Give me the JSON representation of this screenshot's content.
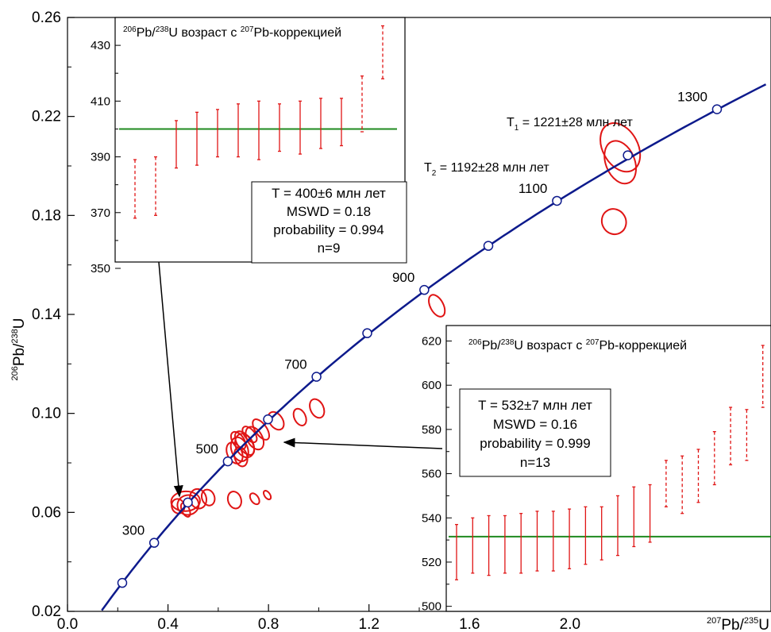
{
  "chart_data": {
    "type": "scatter",
    "main": {
      "xlabel_parts": [
        "207",
        "Pb/",
        "235",
        "U"
      ],
      "ylabel_parts": [
        "206",
        "Pb/",
        "238",
        "U"
      ],
      "xlim": [
        0.0,
        2.8
      ],
      "ylim": [
        0.02,
        0.26
      ],
      "x_ticks": [
        0.0,
        0.4,
        0.8,
        1.2,
        1.6,
        2.0
      ],
      "x_tick_labels": [
        "0.0",
        "0.4",
        "0.8",
        "1.2",
        "1.6",
        "2.0"
      ],
      "y_ticks": [
        0.02,
        0.06,
        0.1,
        0.14,
        0.18,
        0.22,
        0.26
      ],
      "y_tick_labels": [
        "0.02",
        "0.06",
        "0.10",
        "0.14",
        "0.18",
        "0.22",
        "0.26"
      ],
      "concordia_color": "#0d1a8c",
      "ellipse_color": "#e01515",
      "concordia_points": [
        {
          "age": 200,
          "x": 0.218,
          "y": 0.0315,
          "label": ""
        },
        {
          "age": 300,
          "x": 0.345,
          "y": 0.0477,
          "label": "300"
        },
        {
          "age": 400,
          "x": 0.479,
          "y": 0.064,
          "label": ""
        },
        {
          "age": 500,
          "x": 0.638,
          "y": 0.0806,
          "label": "500"
        },
        {
          "age": 600,
          "x": 0.798,
          "y": 0.0976,
          "label": ""
        },
        {
          "age": 700,
          "x": 0.991,
          "y": 0.1148,
          "label": "700"
        },
        {
          "age": 800,
          "x": 1.193,
          "y": 0.1324,
          "label": ""
        },
        {
          "age": 900,
          "x": 1.42,
          "y": 0.1499,
          "label": "900"
        },
        {
          "age": 1000,
          "x": 1.675,
          "y": 0.1677,
          "label": ""
        },
        {
          "age": 1100,
          "x": 1.948,
          "y": 0.1859,
          "label": "1100"
        },
        {
          "age": 1200,
          "x": 2.23,
          "y": 0.2043,
          "label": ""
        },
        {
          "age": 1300,
          "x": 2.585,
          "y": 0.2229,
          "label": "1300"
        }
      ],
      "annotations": [
        {
          "sub": "1",
          "text": " = 1221±28 млн лет"
        },
        {
          "sub": "2",
          "text": " = 1192±28 млн лет"
        }
      ],
      "annotation_letter": "T",
      "ellipses": [
        {
          "cx": 2.2,
          "cy": 0.2075,
          "rx": 0.14,
          "ry": 0.0105,
          "angle": -29
        },
        {
          "cx": 2.2,
          "cy": 0.2015,
          "rx": 0.115,
          "ry": 0.009,
          "angle": -22
        },
        {
          "cx": 2.175,
          "cy": 0.1775,
          "rx": 0.095,
          "ry": 0.0052,
          "angle": -30
        },
        {
          "cx": 1.47,
          "cy": 0.1435,
          "rx": 0.052,
          "ry": 0.0048,
          "angle": -28
        },
        {
          "cx": 0.993,
          "cy": 0.102,
          "rx": 0.052,
          "ry": 0.004,
          "angle": -25
        },
        {
          "cx": 0.925,
          "cy": 0.0985,
          "rx": 0.045,
          "ry": 0.0036,
          "angle": -25
        },
        {
          "cx": 0.83,
          "cy": 0.097,
          "rx": 0.052,
          "ry": 0.004,
          "angle": -35
        },
        {
          "cx": 0.77,
          "cy": 0.0935,
          "rx": 0.045,
          "ry": 0.0048,
          "angle": -35
        },
        {
          "cx": 0.745,
          "cy": 0.09,
          "rx": 0.06,
          "ry": 0.005,
          "angle": -30
        },
        {
          "cx": 0.705,
          "cy": 0.087,
          "rx": 0.07,
          "ry": 0.005,
          "angle": -25
        },
        {
          "cx": 0.685,
          "cy": 0.0855,
          "rx": 0.065,
          "ry": 0.005,
          "angle": -20
        },
        {
          "cx": 0.665,
          "cy": 0.084,
          "rx": 0.058,
          "ry": 0.0045,
          "angle": -25
        },
        {
          "cx": 0.705,
          "cy": 0.088,
          "rx": 0.055,
          "ry": 0.0055,
          "angle": -35
        },
        {
          "cx": 0.725,
          "cy": 0.0915,
          "rx": 0.04,
          "ry": 0.0038,
          "angle": -40
        },
        {
          "cx": 0.68,
          "cy": 0.089,
          "rx": 0.045,
          "ry": 0.004,
          "angle": -35
        },
        {
          "cx": 0.69,
          "cy": 0.0825,
          "rx": 0.05,
          "ry": 0.004,
          "angle": -15
        },
        {
          "cx": 0.47,
          "cy": 0.0645,
          "rx": 0.115,
          "ry": 0.004,
          "angle": -3
        },
        {
          "cx": 0.48,
          "cy": 0.063,
          "rx": 0.085,
          "ry": 0.004,
          "angle": -10
        },
        {
          "cx": 0.52,
          "cy": 0.0655,
          "rx": 0.065,
          "ry": 0.004,
          "angle": -15
        },
        {
          "cx": 0.44,
          "cy": 0.0625,
          "rx": 0.05,
          "ry": 0.003,
          "angle": -20
        },
        {
          "cx": 0.56,
          "cy": 0.066,
          "rx": 0.05,
          "ry": 0.0033,
          "angle": -20
        },
        {
          "cx": 0.47,
          "cy": 0.061,
          "rx": 0.03,
          "ry": 0.003,
          "angle": -25
        },
        {
          "cx": 0.665,
          "cy": 0.065,
          "rx": 0.052,
          "ry": 0.0035,
          "angle": -18
        },
        {
          "cx": 0.745,
          "cy": 0.0655,
          "rx": 0.03,
          "ry": 0.0025,
          "angle": -35
        },
        {
          "cx": 0.795,
          "cy": 0.067,
          "rx": 0.022,
          "ry": 0.002,
          "angle": -35
        }
      ]
    },
    "inset1": {
      "title_parts": [
        "206",
        "Pb/",
        "238",
        "U возраст с ",
        "207",
        "Pb-коррекцией"
      ],
      "ylim": [
        350,
        440
      ],
      "y_ticks": [
        350,
        370,
        390,
        410,
        430
      ],
      "y_tick_labels": [
        "350",
        "370",
        "390",
        "410",
        "430"
      ],
      "weighted_mean": 400,
      "mean_color": "#1f8a1f",
      "bars": [
        {
          "low": 368,
          "high": 389,
          "dashed": true
        },
        {
          "low": 369,
          "high": 390,
          "dashed": true
        },
        {
          "low": 386,
          "high": 403,
          "dashed": false
        },
        {
          "low": 387,
          "high": 406,
          "dashed": false
        },
        {
          "low": 390,
          "high": 407,
          "dashed": false
        },
        {
          "low": 390,
          "high": 409,
          "dashed": false
        },
        {
          "low": 389,
          "high": 410,
          "dashed": false
        },
        {
          "low": 392,
          "high": 409,
          "dashed": false
        },
        {
          "low": 391,
          "high": 410,
          "dashed": false
        },
        {
          "low": 393,
          "high": 411,
          "dashed": false
        },
        {
          "low": 394,
          "high": 411,
          "dashed": false
        },
        {
          "low": 399,
          "high": 419,
          "dashed": true
        },
        {
          "low": 418,
          "high": 437,
          "dashed": true
        }
      ],
      "stats": [
        "T = 400±6 млн лет",
        "MSWD = 0.18",
        "probability = 0.994",
        "n=9"
      ]
    },
    "inset2": {
      "title_parts": [
        "206",
        "Pb/",
        "238",
        "U возраст с ",
        "207",
        "Pb-коррекцией"
      ],
      "ylim": [
        497,
        627
      ],
      "y_ticks": [
        500,
        520,
        540,
        560,
        580,
        600,
        620
      ],
      "y_tick_labels": [
        "500",
        "520",
        "540",
        "560",
        "580",
        "600",
        "620"
      ],
      "weighted_mean": 531.5,
      "mean_color": "#1f8a1f",
      "bars": [
        {
          "low": 512,
          "high": 537,
          "dashed": false
        },
        {
          "low": 515,
          "high": 540,
          "dashed": false
        },
        {
          "low": 514,
          "high": 541,
          "dashed": false
        },
        {
          "low": 515,
          "high": 541,
          "dashed": false
        },
        {
          "low": 515,
          "high": 542,
          "dashed": false
        },
        {
          "low": 516,
          "high": 543,
          "dashed": false
        },
        {
          "low": 516,
          "high": 543,
          "dashed": false
        },
        {
          "low": 517,
          "high": 544,
          "dashed": false
        },
        {
          "low": 519,
          "high": 545,
          "dashed": false
        },
        {
          "low": 521,
          "high": 545,
          "dashed": false
        },
        {
          "low": 523,
          "high": 550,
          "dashed": false
        },
        {
          "low": 527,
          "high": 554,
          "dashed": false
        },
        {
          "low": 529,
          "high": 555,
          "dashed": false
        },
        {
          "low": 545,
          "high": 566,
          "dashed": true
        },
        {
          "low": 542,
          "high": 568,
          "dashed": true
        },
        {
          "low": 547,
          "high": 571,
          "dashed": true
        },
        {
          "low": 555,
          "high": 579,
          "dashed": true
        },
        {
          "low": 564,
          "high": 590,
          "dashed": true
        },
        {
          "low": 566,
          "high": 589,
          "dashed": true
        },
        {
          "low": 590,
          "high": 618,
          "dashed": true
        }
      ],
      "stats": [
        "T = 532±7 млн лет",
        "MSWD = 0.16",
        "probability = 0.999",
        "n=13"
      ]
    }
  }
}
